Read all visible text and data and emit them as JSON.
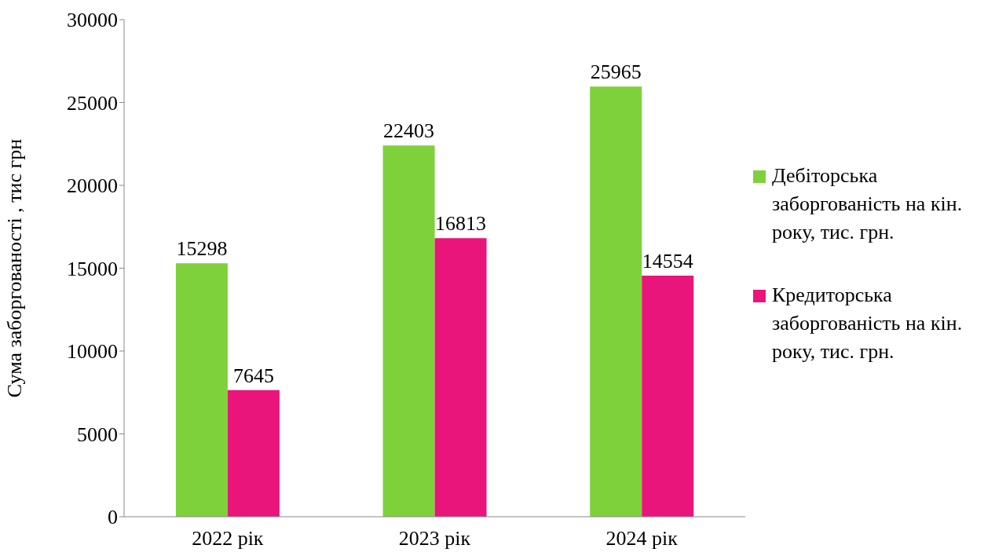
{
  "chart_data": {
    "type": "bar",
    "ylabel": "Сума заборгованості , тис грн",
    "categories": [
      "2022 рік",
      "2023 рік",
      "2024 рік"
    ],
    "series": [
      {
        "name": "Дебіторська заборгованість на кін. року, тис. грн.",
        "color": "#7fd13b",
        "values": [
          15298,
          22403,
          25965
        ]
      },
      {
        "name": "Кредиторська заборгованість на кін. року, тис. грн.",
        "color": "#ea157a",
        "values": [
          7645,
          16813,
          14554
        ]
      }
    ],
    "ylim": [
      0,
      30000
    ],
    "yticks": [
      0,
      5000,
      10000,
      15000,
      20000,
      25000,
      30000
    ],
    "grid": false,
    "legend": "right",
    "data_labels": true
  }
}
